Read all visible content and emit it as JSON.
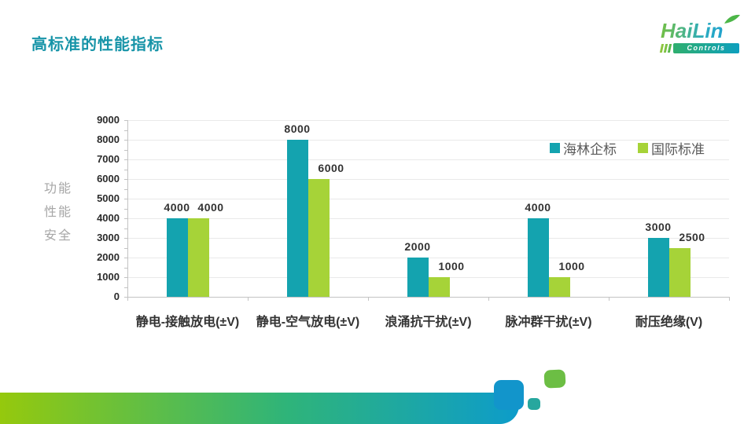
{
  "slide": {
    "title": "高标准的性能指标"
  },
  "logo": {
    "name": "HaiLin",
    "sub": "Controls",
    "name_gradient": [
      "#72BF44",
      "#1B9DD9"
    ],
    "leaf_color": "#4CB648"
  },
  "side_labels": [
    "功能",
    "性能",
    "安全"
  ],
  "chart_data": {
    "type": "bar",
    "title": "",
    "categories": [
      "静电-接触放电(±V)",
      "静电-空气放电(±V)",
      "浪涌抗干扰(±V)",
      "脉冲群干扰(±V)",
      "耐压绝缘(V)"
    ],
    "series": [
      {
        "name": "海林企标",
        "color": "#14A3AF",
        "values": [
          4000,
          8000,
          2000,
          4000,
          3000
        ]
      },
      {
        "name": "国际标准",
        "color": "#A6D338",
        "values": [
          4000,
          6000,
          1000,
          1000,
          2500
        ]
      }
    ],
    "xlabel": "",
    "ylabel": "",
    "ylim": [
      0,
      9000
    ],
    "ytick_step": 1000,
    "ytick_minor_step": 500,
    "grid": true,
    "legend_position": "top-right",
    "data_labels": true
  },
  "colors": {
    "title": "#1794A8",
    "side_labels": "#A6A6A6",
    "grid": "#E9E9E9",
    "axis": "#C3C3C3",
    "tick_text": "#2B2B2B",
    "decor_gradient": [
      "#95C90D",
      "#2FB479",
      "#0D9CCA"
    ],
    "decor_blue_block": "#1295CB",
    "decor_green_block": "#6CBE44",
    "decor_teal_block": "#27A79E"
  }
}
